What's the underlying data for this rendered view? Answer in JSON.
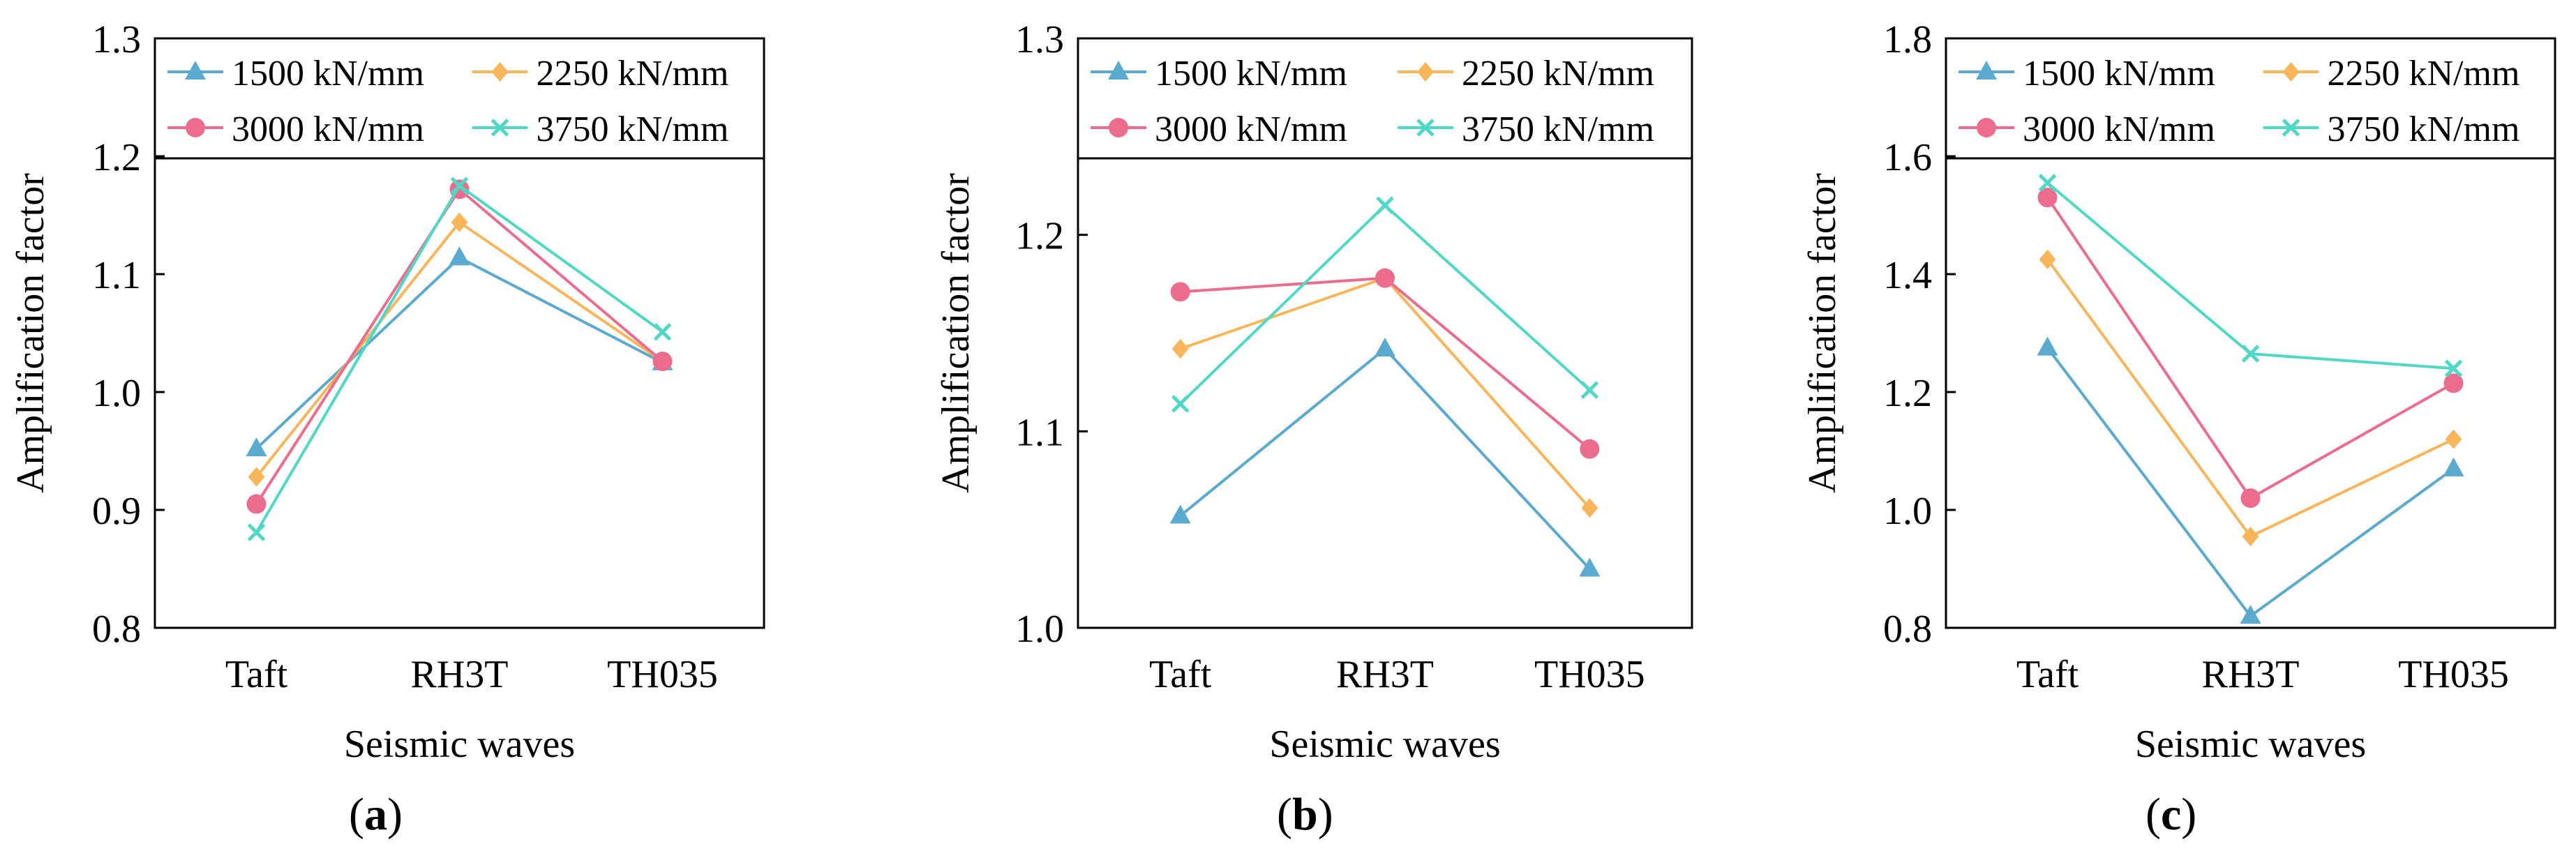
{
  "colors": {
    "1500": "#5aaacf",
    "2250": "#f9b55a",
    "3000": "#ec6c8e",
    "3750": "#4fd8c6"
  },
  "panel_labels": [
    {
      "open": "(",
      "letter": "a",
      "close": ")"
    },
    {
      "open": "(",
      "letter": "b",
      "close": ")"
    },
    {
      "open": "(",
      "letter": "c",
      "close": ")"
    }
  ],
  "chart_data": [
    {
      "type": "line",
      "title": "",
      "xlabel": "Seismic waves",
      "ylabel": "Amplification factor",
      "categories": [
        "Taft",
        "RH3T",
        "TH035"
      ],
      "ylim": [
        0.8,
        1.3
      ],
      "yticks": [
        "0.8",
        "0.9",
        "1.0",
        "1.1",
        "1.2",
        "1.3"
      ],
      "grid": false,
      "legend_position": "top",
      "series": [
        {
          "name": "1500 kN/mm",
          "marker": "triangle",
          "color_key": "1500",
          "values": [
            0.952,
            1.114,
            1.025
          ]
        },
        {
          "name": "2250 kN/mm",
          "marker": "diamond",
          "color_key": "2250",
          "values": [
            0.928,
            1.144,
            1.026
          ]
        },
        {
          "name": "3000 kN/mm",
          "marker": "circle",
          "color_key": "3000",
          "values": [
            0.905,
            1.172,
            1.026
          ]
        },
        {
          "name": "3750 kN/mm",
          "marker": "cross",
          "color_key": "3750",
          "values": [
            0.881,
            1.175,
            1.051
          ]
        }
      ]
    },
    {
      "type": "line",
      "title": "",
      "xlabel": "Seismic waves",
      "ylabel": "Amplification factor",
      "categories": [
        "Taft",
        "RH3T",
        "TH035"
      ],
      "ylim": [
        1.0,
        1.3
      ],
      "yticks": [
        "1.0",
        "1.1",
        "1.2",
        "1.3"
      ],
      "grid": false,
      "legend_position": "top",
      "series": [
        {
          "name": "1500 kN/mm",
          "marker": "triangle",
          "color_key": "1500",
          "values": [
            1.057,
            1.142,
            1.03
          ]
        },
        {
          "name": "2250 kN/mm",
          "marker": "diamond",
          "color_key": "2250",
          "values": [
            1.142,
            1.178,
            1.061
          ]
        },
        {
          "name": "3000 kN/mm",
          "marker": "circle",
          "color_key": "3000",
          "values": [
            1.171,
            1.178,
            1.091
          ]
        },
        {
          "name": "3750 kN/mm",
          "marker": "cross",
          "color_key": "3750",
          "values": [
            1.114,
            1.215,
            1.121
          ]
        }
      ]
    },
    {
      "type": "line",
      "title": "",
      "xlabel": "Seismic waves",
      "ylabel": "Amplification factor",
      "categories": [
        "Taft",
        "RH3T",
        "TH035"
      ],
      "ylim": [
        0.8,
        1.8
      ],
      "yticks": [
        "0.8",
        "1.0",
        "1.2",
        "1.4",
        "1.6",
        "1.8"
      ],
      "grid": false,
      "legend_position": "top",
      "series": [
        {
          "name": "1500 kN/mm",
          "marker": "triangle",
          "color_key": "1500",
          "values": [
            1.275,
            0.82,
            1.07
          ]
        },
        {
          "name": "2250 kN/mm",
          "marker": "diamond",
          "color_key": "2250",
          "values": [
            1.425,
            0.955,
            1.12
          ]
        },
        {
          "name": "3000 kN/mm",
          "marker": "circle",
          "color_key": "3000",
          "values": [
            1.53,
            1.02,
            1.215
          ]
        },
        {
          "name": "3750 kN/mm",
          "marker": "cross",
          "color_key": "3750",
          "values": [
            1.555,
            1.265,
            1.24
          ]
        }
      ]
    }
  ]
}
